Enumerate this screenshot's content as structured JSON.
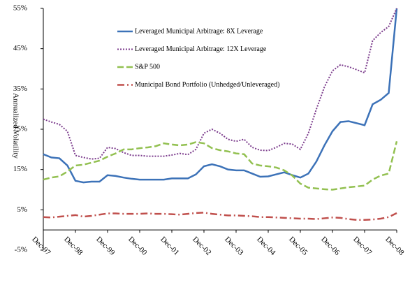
{
  "chart_data": {
    "type": "line",
    "y_label": "Annualized Volatility",
    "x": [
      1997.92,
      1998.17,
      1998.42,
      1998.67,
      1998.92,
      1999.17,
      1999.42,
      1999.67,
      1999.92,
      2000.17,
      2000.42,
      2000.67,
      2000.92,
      2001.17,
      2001.42,
      2001.67,
      2001.92,
      2002.17,
      2002.42,
      2002.67,
      2002.92,
      2003.17,
      2003.42,
      2003.67,
      2003.92,
      2004.17,
      2004.42,
      2004.67,
      2004.92,
      2005.17,
      2005.42,
      2005.67,
      2005.92,
      2006.17,
      2006.42,
      2006.67,
      2006.92,
      2007.17,
      2007.42,
      2007.67,
      2007.92,
      2008.17,
      2008.42,
      2008.67,
      2008.92
    ],
    "series": [
      {
        "name": "Leveraged Municipal Arbitrage: 8X Leverage",
        "color": "#3c72b8",
        "line_style": "solid",
        "values": [
          18.8,
          18,
          17.8,
          16,
          12.2,
          11.8,
          12,
          12,
          13.6,
          13.4,
          13,
          12.7,
          12.5,
          12.5,
          12.5,
          12.5,
          12.8,
          12.8,
          12.8,
          13.8,
          15.8,
          16.3,
          15.8,
          15,
          14.8,
          14.8,
          14,
          13.2,
          13.3,
          13.8,
          14.3,
          13.6,
          13,
          14,
          17,
          21,
          24.5,
          26.8,
          27,
          26.5,
          26,
          31.2,
          32.3,
          34,
          55
        ]
      },
      {
        "name": "Leveraged Municipal Arbitrage: 12X Leverage",
        "color": "#7b3b8c",
        "line_style": "dotted",
        "values": [
          27.5,
          26.8,
          26.2,
          24.5,
          18.5,
          18,
          17.6,
          17.8,
          20.5,
          20.2,
          19.2,
          18.5,
          18.5,
          18.3,
          18.3,
          18.3,
          18.6,
          19,
          18.7,
          20,
          24,
          25,
          24,
          22.5,
          22,
          22.5,
          20.5,
          19.8,
          19.7,
          20.5,
          21.5,
          21.3,
          20,
          24,
          30,
          35.5,
          39.5,
          41,
          40.5,
          39.8,
          39,
          47,
          49,
          50.5,
          55
        ]
      },
      {
        "name": "S&P 500",
        "color": "#92c050",
        "line_style": "dashed",
        "values": [
          12.5,
          13,
          13.3,
          14.5,
          16,
          16.2,
          16.7,
          17.2,
          18.2,
          19,
          20,
          20,
          20.3,
          20.5,
          20.8,
          21.5,
          21.2,
          21,
          21.2,
          21.8,
          21.5,
          20.3,
          19.8,
          19.5,
          19,
          18.8,
          16.5,
          16,
          15.8,
          15.5,
          14.8,
          13.5,
          11.5,
          10.5,
          10.3,
          10.1,
          10,
          10.3,
          10.6,
          10.8,
          11,
          12.5,
          13.5,
          14,
          22
        ]
      },
      {
        "name": "Municipal Bond Portfolio (Unhedged/Unleveraged)",
        "color": "#c0504d",
        "line_style": "dashdot",
        "values": [
          3.2,
          3.1,
          3.3,
          3.5,
          3.7,
          3.3,
          3.5,
          3.8,
          4.1,
          4.1,
          4,
          4,
          4,
          4.1,
          4,
          4,
          3.9,
          3.8,
          4,
          4.2,
          4.3,
          4,
          3.8,
          3.6,
          3.6,
          3.5,
          3.4,
          3.2,
          3.2,
          3.1,
          3,
          2.9,
          2.8,
          2.8,
          2.7,
          2.9,
          3.1,
          3,
          2.7,
          2.5,
          2.5,
          2.6,
          2.8,
          3.2,
          4.2
        ]
      }
    ],
    "xlim": [
      1997.92,
      2008.92
    ],
    "xticks": [
      {
        "value": 1997.92,
        "label": "Dec-97"
      },
      {
        "value": 1998.92,
        "label": "Dec-98"
      },
      {
        "value": 1999.92,
        "label": "Dec-99"
      },
      {
        "value": 2000.92,
        "label": "Dec-00"
      },
      {
        "value": 2001.92,
        "label": "Dec-01"
      },
      {
        "value": 2002.92,
        "label": "Dec-02"
      },
      {
        "value": 2003.92,
        "label": "Dec-03"
      },
      {
        "value": 2004.92,
        "label": "Dec-04"
      },
      {
        "value": 2005.92,
        "label": "Dec-05"
      },
      {
        "value": 2006.92,
        "label": "Dec-06"
      },
      {
        "value": 2007.92,
        "label": "Dec-07"
      },
      {
        "value": 2008.92,
        "label": "Dec-08"
      }
    ],
    "ylim": [
      -5,
      55
    ],
    "yticks": [
      {
        "value": -5,
        "label": "-5%"
      },
      {
        "value": 5,
        "label": "5%"
      },
      {
        "value": 15,
        "label": "15%"
      },
      {
        "value": 25,
        "label": "25%"
      },
      {
        "value": 35,
        "label": "35%"
      },
      {
        "value": 45,
        "label": "45%"
      },
      {
        "value": 55,
        "label": "55%"
      }
    ],
    "grid": false
  }
}
